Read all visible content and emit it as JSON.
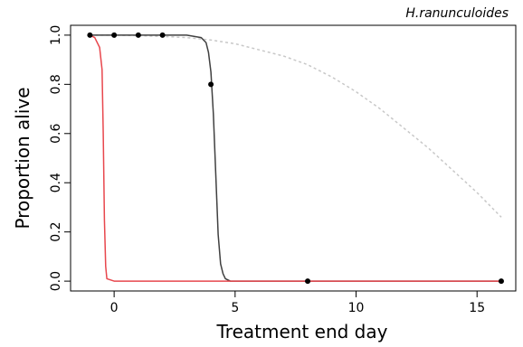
{
  "chart_data": {
    "type": "line",
    "title": "H.ranunculoides",
    "xlabel": "Treatment end day",
    "ylabel": "Proportion alive",
    "xlim": [
      -1.8,
      16.6
    ],
    "ylim": [
      -0.04,
      1.04
    ],
    "x_ticks": [
      0,
      5,
      10,
      15
    ],
    "y_ticks": [
      0.0,
      0.2,
      0.4,
      0.6,
      0.8,
      1.0
    ],
    "x_tick_labels": [
      "0",
      "5",
      "10",
      "15"
    ],
    "y_tick_labels": [
      "0.0",
      "0.2",
      "0.4",
      "0.6",
      "0.8",
      "1.0"
    ],
    "grid": false,
    "series": [
      {
        "style": "dotted",
        "color": "#c8c8c8",
        "x": [
          -1,
          0,
          1,
          2,
          3,
          4,
          5,
          6,
          7,
          8,
          9,
          10,
          11,
          12,
          13,
          14,
          15,
          16
        ],
        "y": [
          1.0,
          1.0,
          0.998,
          0.995,
          0.99,
          0.98,
          0.965,
          0.94,
          0.915,
          0.88,
          0.83,
          0.77,
          0.7,
          0.62,
          0.54,
          0.45,
          0.36,
          0.26
        ]
      },
      {
        "style": "solid",
        "color": "#404040",
        "x": [
          -1,
          0,
          1,
          2,
          3,
          3.6,
          3.8,
          3.9,
          4.0,
          4.1,
          4.2,
          4.3,
          4.4,
          4.5,
          4.6,
          4.8,
          5,
          8,
          16
        ],
        "y": [
          1.0,
          1.0,
          1.0,
          1.0,
          1.0,
          0.99,
          0.97,
          0.93,
          0.85,
          0.68,
          0.44,
          0.19,
          0.07,
          0.03,
          0.01,
          0.0,
          0.0,
          0.0,
          0.0
        ]
      },
      {
        "style": "solid",
        "color": "#e8474d",
        "x": [
          -1,
          -0.8,
          -0.6,
          -0.5,
          -0.45,
          -0.4,
          -0.35,
          -0.3,
          0,
          5,
          10,
          16
        ],
        "y": [
          1.0,
          0.99,
          0.95,
          0.86,
          0.6,
          0.25,
          0.06,
          0.01,
          0.0,
          0.0,
          0.0,
          0.0
        ]
      }
    ],
    "points": {
      "color": "#000000",
      "x": [
        -1,
        0,
        1,
        2,
        4,
        8,
        16
      ],
      "y": [
        1.0,
        1.0,
        1.0,
        1.0,
        0.8,
        0.0,
        0.0
      ]
    }
  }
}
